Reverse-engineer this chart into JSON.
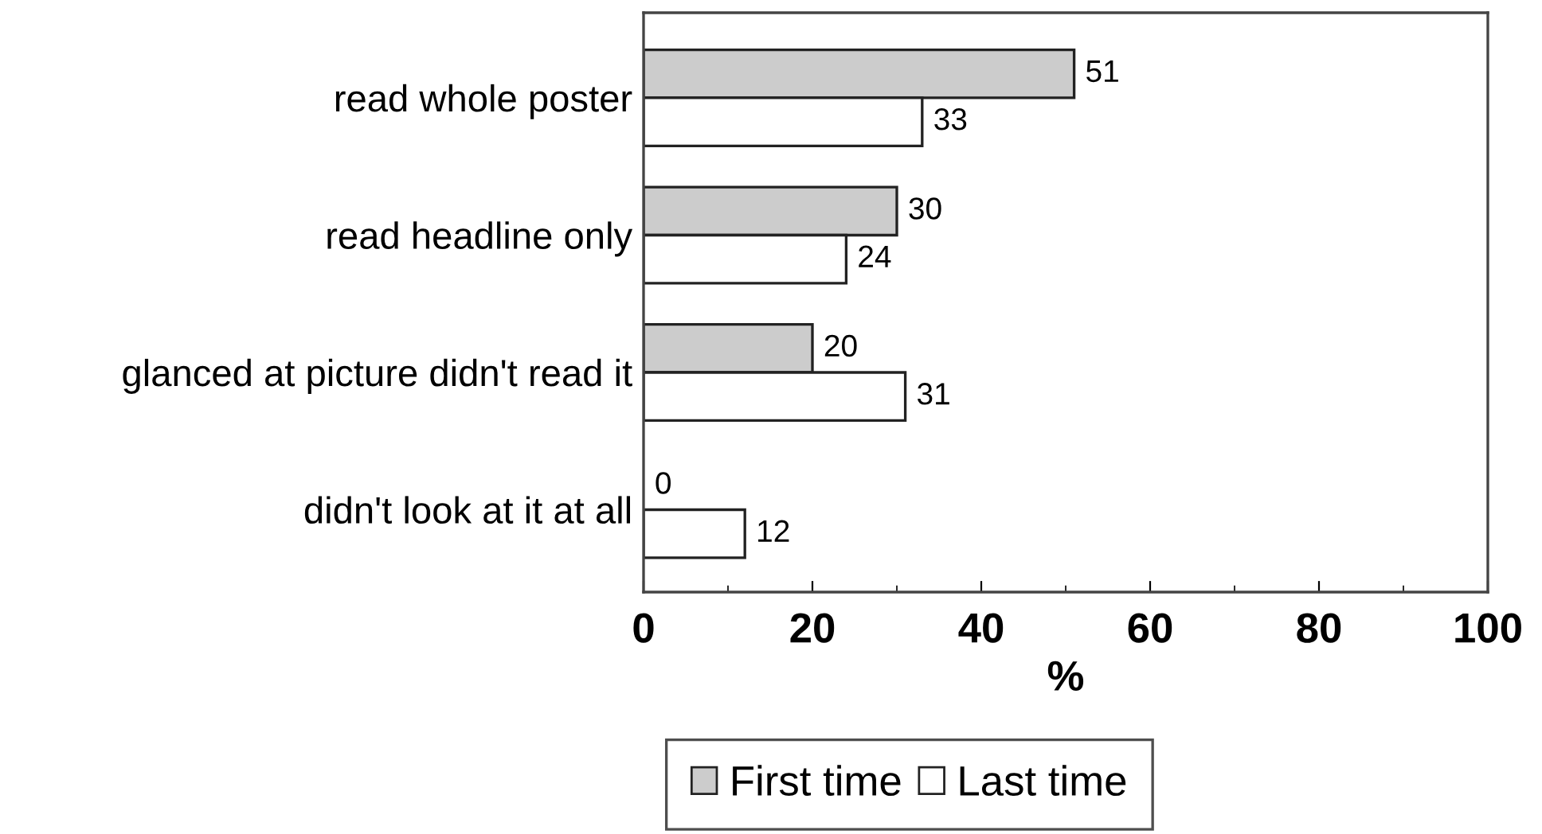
{
  "chart_data": {
    "type": "bar",
    "orientation": "horizontal",
    "xlabel": "%",
    "categories": [
      "read whole poster",
      "read headline only",
      "glanced at picture didn't read it",
      "didn't look at it at all"
    ],
    "series": [
      {
        "name": "First time",
        "color": "#cccccc",
        "values": [
          51,
          30,
          20,
          0
        ]
      },
      {
        "name": "Last time",
        "color": "#ffffff",
        "values": [
          33,
          24,
          31,
          12
        ]
      }
    ],
    "xlim": [
      0,
      100
    ],
    "xticks": [
      0,
      20,
      40,
      60,
      80,
      100
    ],
    "data_labels": true,
    "legend": "bottom",
    "grid": false
  }
}
